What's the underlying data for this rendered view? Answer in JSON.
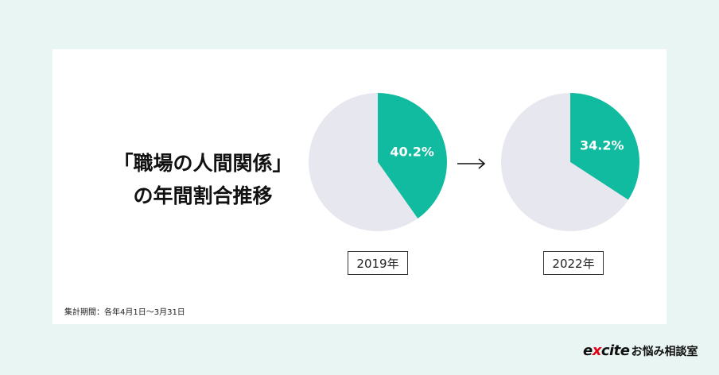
{
  "chart_data": {
    "type": "pie",
    "title_lines": [
      "「職場の人間関係」",
      "の年間割合推移"
    ],
    "note": "集計期間：各年4月1日〜3月31日",
    "charts": [
      {
        "year_label": "2019年",
        "slices": [
          {
            "label": "40.2%",
            "value": 40.2,
            "color": "#10bba0"
          },
          {
            "value": 59.8,
            "color": "#e7e7ef"
          }
        ]
      },
      {
        "year_label": "2022年",
        "slices": [
          {
            "label": "34.2%",
            "value": 34.2,
            "color": "#10bba0"
          },
          {
            "value": 65.8,
            "color": "#e7e7ef"
          }
        ]
      }
    ],
    "arrow": "→"
  },
  "brand": {
    "logo_mark_pre": "e",
    "logo_mark_x": "x",
    "logo_mark_post": "cite",
    "logo_text": "お悩み相談室"
  }
}
